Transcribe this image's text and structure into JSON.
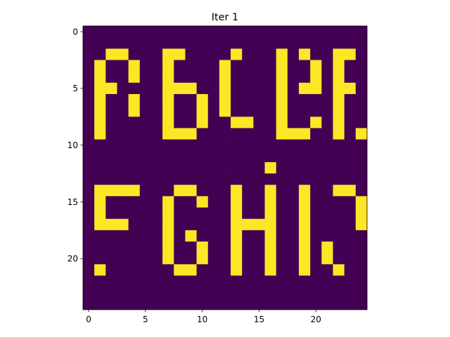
{
  "chart_data": {
    "type": "heatmap",
    "title": "Iter 1",
    "xlabel": "",
    "ylabel": "",
    "xlim": [
      -0.5,
      24.5
    ],
    "ylim": [
      24.5,
      -0.5
    ],
    "x_ticks": [
      0,
      5,
      10,
      15,
      20
    ],
    "y_ticks": [
      0,
      5,
      10,
      15,
      20
    ],
    "colors": {
      "off": "#440154",
      "on": "#fde725",
      "axis": "#000000"
    },
    "grid": false,
    "rows": 25,
    "cols": 25,
    "values": [
      [
        0,
        0,
        0,
        0,
        0,
        0,
        0,
        0,
        0,
        0,
        0,
        0,
        0,
        0,
        0,
        0,
        0,
        0,
        0,
        0,
        0,
        0,
        0,
        0,
        0
      ],
      [
        0,
        0,
        0,
        0,
        0,
        0,
        0,
        0,
        0,
        0,
        0,
        0,
        0,
        0,
        0,
        0,
        0,
        0,
        0,
        0,
        0,
        0,
        0,
        0,
        0
      ],
      [
        0,
        0,
        1,
        1,
        0,
        0,
        0,
        1,
        1,
        0,
        0,
        0,
        0,
        1,
        0,
        0,
        0,
        1,
        0,
        1,
        0,
        0,
        1,
        1,
        0
      ],
      [
        0,
        1,
        0,
        0,
        1,
        0,
        0,
        1,
        0,
        0,
        0,
        0,
        1,
        0,
        0,
        0,
        0,
        1,
        0,
        0,
        1,
        0,
        1,
        0,
        0
      ],
      [
        0,
        1,
        0,
        0,
        1,
        0,
        0,
        1,
        0,
        0,
        0,
        0,
        1,
        0,
        0,
        0,
        0,
        1,
        0,
        0,
        1,
        0,
        1,
        0,
        0
      ],
      [
        0,
        1,
        1,
        0,
        0,
        0,
        0,
        1,
        1,
        1,
        0,
        0,
        1,
        0,
        0,
        0,
        0,
        1,
        0,
        1,
        1,
        0,
        1,
        1,
        0
      ],
      [
        0,
        1,
        0,
        0,
        1,
        0,
        0,
        1,
        0,
        0,
        1,
        0,
        1,
        0,
        0,
        0,
        0,
        1,
        0,
        0,
        0,
        0,
        1,
        0,
        0
      ],
      [
        0,
        1,
        0,
        0,
        1,
        0,
        0,
        1,
        0,
        0,
        1,
        0,
        1,
        0,
        0,
        0,
        0,
        1,
        0,
        0,
        0,
        0,
        1,
        0,
        0
      ],
      [
        0,
        1,
        0,
        0,
        0,
        0,
        0,
        1,
        0,
        0,
        1,
        0,
        0,
        1,
        1,
        0,
        0,
        1,
        0,
        0,
        1,
        0,
        1,
        0,
        0
      ],
      [
        0,
        1,
        0,
        0,
        0,
        0,
        0,
        1,
        1,
        1,
        0,
        0,
        0,
        0,
        0,
        0,
        0,
        1,
        1,
        1,
        0,
        0,
        1,
        0,
        1
      ],
      [
        0,
        0,
        0,
        0,
        0,
        0,
        0,
        0,
        0,
        0,
        0,
        0,
        0,
        0,
        0,
        0,
        0,
        0,
        0,
        0,
        0,
        0,
        0,
        0,
        0
      ],
      [
        0,
        0,
        0,
        0,
        0,
        0,
        0,
        0,
        0,
        0,
        0,
        0,
        0,
        0,
        0,
        0,
        0,
        0,
        0,
        0,
        0,
        0,
        0,
        0,
        0
      ],
      [
        0,
        0,
        0,
        0,
        0,
        0,
        0,
        0,
        0,
        0,
        0,
        0,
        0,
        0,
        0,
        0,
        1,
        0,
        0,
        0,
        0,
        0,
        0,
        0,
        0
      ],
      [
        0,
        0,
        0,
        0,
        0,
        0,
        0,
        0,
        0,
        0,
        0,
        0,
        0,
        0,
        0,
        0,
        0,
        0,
        0,
        0,
        0,
        0,
        0,
        0,
        0
      ],
      [
        0,
        1,
        1,
        1,
        1,
        0,
        0,
        0,
        1,
        1,
        0,
        0,
        0,
        1,
        0,
        0,
        1,
        0,
        0,
        1,
        0,
        0,
        1,
        1,
        0
      ],
      [
        0,
        1,
        0,
        0,
        0,
        0,
        0,
        1,
        0,
        0,
        1,
        0,
        0,
        1,
        0,
        0,
        1,
        0,
        0,
        1,
        0,
        0,
        0,
        0,
        1
      ],
      [
        0,
        1,
        0,
        0,
        0,
        0,
        0,
        1,
        0,
        0,
        0,
        0,
        0,
        1,
        0,
        0,
        1,
        0,
        0,
        1,
        0,
        0,
        0,
        0,
        1
      ],
      [
        0,
        1,
        1,
        1,
        0,
        0,
        0,
        1,
        0,
        0,
        0,
        0,
        0,
        1,
        1,
        1,
        1,
        0,
        0,
        1,
        0,
        0,
        0,
        0,
        1
      ],
      [
        0,
        0,
        0,
        0,
        0,
        0,
        0,
        1,
        0,
        1,
        0,
        0,
        0,
        1,
        0,
        0,
        1,
        0,
        0,
        1,
        0,
        0,
        0,
        0,
        0
      ],
      [
        0,
        0,
        0,
        0,
        0,
        0,
        0,
        1,
        0,
        0,
        1,
        0,
        0,
        1,
        0,
        0,
        1,
        0,
        0,
        1,
        0,
        1,
        0,
        0,
        0
      ],
      [
        0,
        0,
        0,
        0,
        0,
        0,
        0,
        1,
        0,
        0,
        1,
        0,
        0,
        1,
        0,
        0,
        1,
        0,
        0,
        1,
        0,
        1,
        0,
        0,
        0
      ],
      [
        0,
        1,
        0,
        0,
        0,
        0,
        0,
        0,
        1,
        1,
        0,
        0,
        0,
        1,
        0,
        0,
        1,
        0,
        0,
        1,
        0,
        0,
        1,
        0,
        0
      ],
      [
        0,
        0,
        0,
        0,
        0,
        0,
        0,
        0,
        0,
        0,
        0,
        0,
        0,
        0,
        0,
        0,
        0,
        0,
        0,
        0,
        0,
        0,
        0,
        0,
        0
      ],
      [
        0,
        0,
        0,
        0,
        0,
        0,
        0,
        0,
        0,
        0,
        0,
        0,
        0,
        0,
        0,
        0,
        0,
        0,
        0,
        0,
        0,
        0,
        0,
        0,
        0
      ],
      [
        0,
        0,
        0,
        0,
        0,
        0,
        0,
        0,
        0,
        0,
        0,
        0,
        0,
        0,
        0,
        0,
        0,
        0,
        0,
        0,
        0,
        0,
        0,
        0,
        0
      ]
    ]
  }
}
